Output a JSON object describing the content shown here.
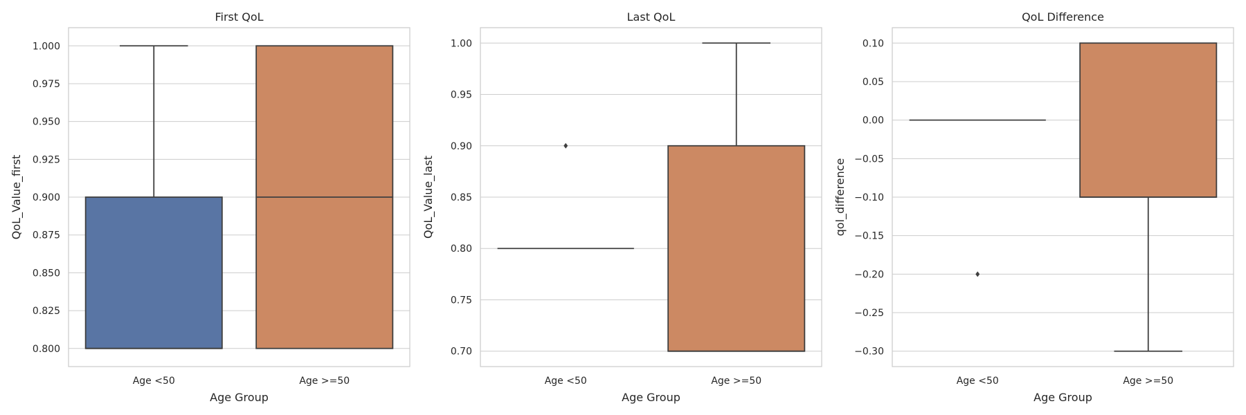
{
  "chart_data": [
    {
      "type": "box",
      "title": "First QoL",
      "xlabel": "Age Group",
      "ylabel": "QoL_Value_first",
      "ylim": [
        0.788,
        1.012
      ],
      "yticks": [
        0.8,
        0.825,
        0.85,
        0.875,
        0.9,
        0.925,
        0.95,
        0.975,
        1.0
      ],
      "ytick_labels": [
        "0.800",
        "0.825",
        "0.850",
        "0.875",
        "0.900",
        "0.925",
        "0.950",
        "0.975",
        "1.000"
      ],
      "grid": true,
      "categories": [
        "Age <50",
        "Age >=50"
      ],
      "boxes": [
        {
          "category": "Age <50",
          "whisker_low": 0.8,
          "q1": 0.8,
          "median": 0.8,
          "q3": 0.9,
          "whisker_high": 1.0,
          "outliers": [],
          "color": "#5975a4"
        },
        {
          "category": "Age >=50",
          "whisker_low": 0.8,
          "q1": 0.8,
          "median": 0.9,
          "q3": 1.0,
          "whisker_high": 1.0,
          "outliers": [],
          "color": "#cc8963"
        }
      ]
    },
    {
      "type": "box",
      "title": "Last QoL",
      "xlabel": "Age Group",
      "ylabel": "QoL_Value_last",
      "ylim": [
        0.685,
        1.015
      ],
      "yticks": [
        0.7,
        0.75,
        0.8,
        0.85,
        0.9,
        0.95,
        1.0
      ],
      "ytick_labels": [
        "0.70",
        "0.75",
        "0.80",
        "0.85",
        "0.90",
        "0.95",
        "1.00"
      ],
      "grid": true,
      "categories": [
        "Age <50",
        "Age >=50"
      ],
      "boxes": [
        {
          "category": "Age <50",
          "whisker_low": 0.8,
          "q1": 0.8,
          "median": 0.8,
          "q3": 0.8,
          "whisker_high": 0.8,
          "outliers": [
            0.9
          ],
          "color": "#5975a4"
        },
        {
          "category": "Age >=50",
          "whisker_low": 0.7,
          "q1": 0.7,
          "median": 0.7,
          "q3": 0.9,
          "whisker_high": 1.0,
          "outliers": [],
          "color": "#cc8963"
        }
      ]
    },
    {
      "type": "box",
      "title": "QoL Difference",
      "xlabel": "Age Group",
      "ylabel": "qol_difference",
      "ylim": [
        -0.32,
        0.12
      ],
      "yticks": [
        -0.3,
        -0.25,
        -0.2,
        -0.15,
        -0.1,
        -0.05,
        0.0,
        0.05,
        0.1
      ],
      "ytick_labels": [
        "−0.30",
        "−0.25",
        "−0.20",
        "−0.15",
        "−0.10",
        "−0.05",
        "0.00",
        "0.05",
        "0.10"
      ],
      "grid": true,
      "categories": [
        "Age <50",
        "Age >=50"
      ],
      "boxes": [
        {
          "category": "Age <50",
          "whisker_low": 0.0,
          "q1": 0.0,
          "median": 0.0,
          "q3": 0.0,
          "whisker_high": 0.0,
          "outliers": [
            -0.2
          ],
          "color": "#5975a4"
        },
        {
          "category": "Age >=50",
          "whisker_low": -0.3,
          "q1": -0.1,
          "median": -0.1,
          "q3": 0.1,
          "whisker_high": 0.1,
          "outliers": [],
          "color": "#cc8963"
        }
      ]
    }
  ],
  "colors": {
    "line": "#3f3f3f",
    "grid": "#cccccc",
    "text": "#262626"
  }
}
